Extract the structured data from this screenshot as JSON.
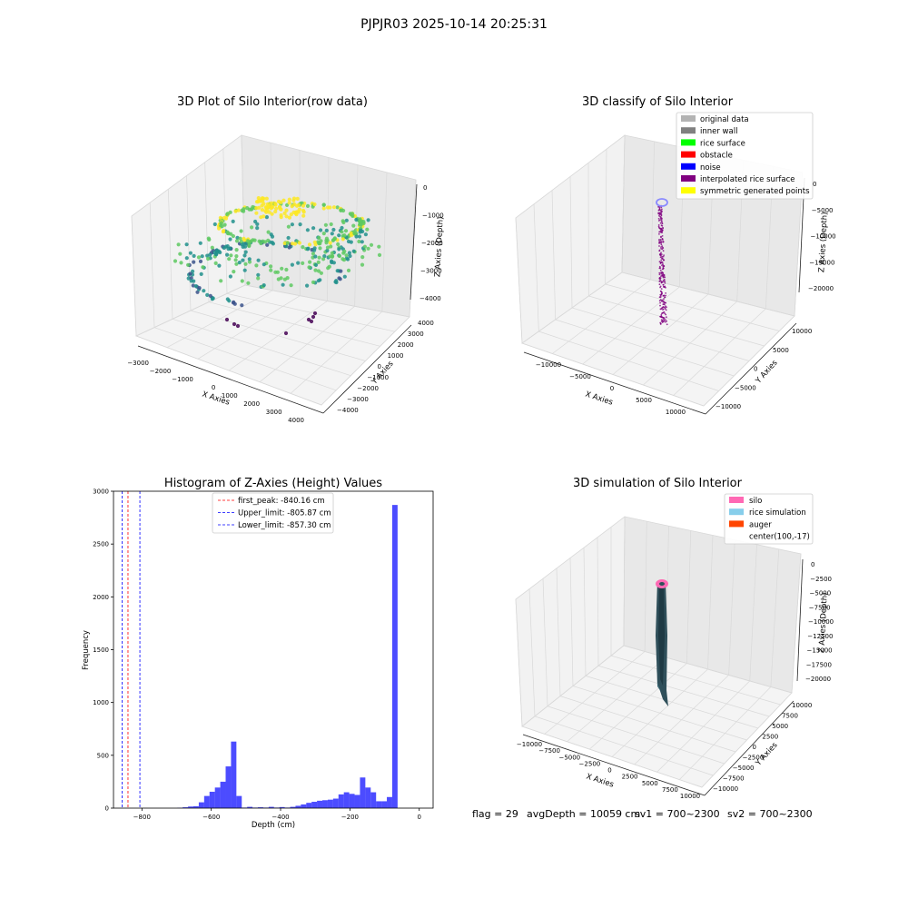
{
  "suptitle": "PJPJR03 2025-10-14 20:25:31",
  "chart_data": [
    {
      "type": "scatter",
      "title": "3D Plot of Silo Interior(row data)",
      "xlabel": "X Axies",
      "ylabel": "Y Axies",
      "zlabel": "Z Axies (Depth)",
      "xticks": [
        "−3000",
        "−2000",
        "−1000",
        "0",
        "1000",
        "2000",
        "3000",
        "4000"
      ],
      "yticks": [
        "−4000",
        "−3000",
        "−2000",
        "−1000",
        "0",
        "1000",
        "2000",
        "3000",
        "4000"
      ],
      "zticks": [
        "0",
        "−1000",
        "−2000",
        "−3000",
        "−4000"
      ],
      "colormap": [
        "#440154",
        "#3b528b",
        "#21918c",
        "#5ec962",
        "#fde725"
      ]
    },
    {
      "type": "scatter",
      "title": "3D classify of Silo Interior",
      "xlabel": "X Axies",
      "ylabel": "Y Axies",
      "zlabel": "Z Axies (Depth)",
      "xticks": [
        "−10000",
        "−5000",
        "0",
        "5000",
        "10000"
      ],
      "yticks": [
        "−10000",
        "−5000",
        "0",
        "5000",
        "10000"
      ],
      "zticks": [
        "0",
        "−5000",
        "−10000",
        "−15000",
        "−20000"
      ],
      "legend": [
        {
          "label": "original data",
          "color": "#b3b3b3"
        },
        {
          "label": "inner wall",
          "color": "#808080"
        },
        {
          "label": "rice surface",
          "color": "#00ff00"
        },
        {
          "label": "obstacle",
          "color": "#ff0000"
        },
        {
          "label": "noise",
          "color": "#0000ff"
        },
        {
          "label": "interpolated rice surface",
          "color": "#800080"
        },
        {
          "label": "symmetric generated points",
          "color": "#ffff00"
        }
      ]
    },
    {
      "type": "bar",
      "title": "Histogram of Z-Axies (Height) Values",
      "xlabel": "Depth (cm)",
      "ylabel": "Frequency",
      "xlim": [
        -882,
        40
      ],
      "ylim": [
        0,
        3000
      ],
      "xticks": [
        -800,
        -600,
        -400,
        -200,
        0
      ],
      "xtick_labels": [
        "−800",
        "−600",
        "−400",
        "−200",
        "0"
      ],
      "yticks": [
        0,
        500,
        1000,
        1500,
        2000,
        2500,
        3000
      ],
      "bar_color": "#0000ff",
      "bin_width": 15.5,
      "bin_starts": [
        -698,
        -682.5,
        -667,
        -651.5,
        -636,
        -620.5,
        -605,
        -589.5,
        -574,
        -558.5,
        -543,
        -527.5,
        -512,
        -496.5,
        -481,
        -465.5,
        -450,
        -434.5,
        -419,
        -403.5,
        -388,
        -372.5,
        -357,
        -341.5,
        -326,
        -310.5,
        -295,
        -279.5,
        -264,
        -248.5,
        -233,
        -217.5,
        -202,
        -186.5,
        -171,
        -155.5,
        -140,
        -124.5,
        -109,
        -93.5,
        -78,
        -62.5,
        -47,
        -31.5,
        -16,
        -0.5
      ],
      "values": [
        3,
        8,
        15,
        18,
        55,
        115,
        155,
        195,
        250,
        395,
        630,
        115,
        5,
        12,
        5,
        8,
        5,
        12,
        5,
        10,
        5,
        12,
        22,
        35,
        50,
        60,
        70,
        75,
        80,
        90,
        130,
        150,
        135,
        125,
        290,
        195,
        150,
        65,
        65,
        105,
        2870,
        0,
        0,
        0,
        0,
        0
      ],
      "lines": [
        {
          "label": "first_peak: -840.16 cm",
          "x": -840.16,
          "color": "#ff0000"
        },
        {
          "label": "Upper_limit: -805.87 cm",
          "x": -805.87,
          "color": "#0000ff"
        },
        {
          "label": "Lower_limit: -857.30 cm",
          "x": -857.3,
          "color": "#0000ff"
        }
      ]
    },
    {
      "type": "area",
      "title": "3D simulation of Silo Interior",
      "xlabel": "X Axies",
      "ylabel": "Y Axies",
      "zlabel": "Z Axies (Depth)",
      "xticks": [
        "−10000",
        "−7500",
        "−5000",
        "−2500",
        "0",
        "2500",
        "5000",
        "7500",
        "10000"
      ],
      "yticks": [
        "−10000",
        "−7500",
        "−5000",
        "−2500",
        "0",
        "2500",
        "5000",
        "7500",
        "10000"
      ],
      "zticks": [
        "0",
        "−2500",
        "−5000",
        "−7500",
        "−10000",
        "−12500",
        "−15000",
        "−17500",
        "−20000"
      ],
      "legend": [
        {
          "label": "silo",
          "color": "#ff69b4"
        },
        {
          "label": "rice simulation",
          "color": "#87ceeb"
        },
        {
          "label": "auger",
          "color": "#ff4500"
        },
        {
          "label": "center(100,-17)",
          "color": ""
        }
      ]
    }
  ],
  "footer": {
    "flag": "flag = 29",
    "avg": "avgDepth = 10059 cm",
    "sv1": "sv1 = 700~2300",
    "sv2": "sv2 = 700~2300"
  }
}
